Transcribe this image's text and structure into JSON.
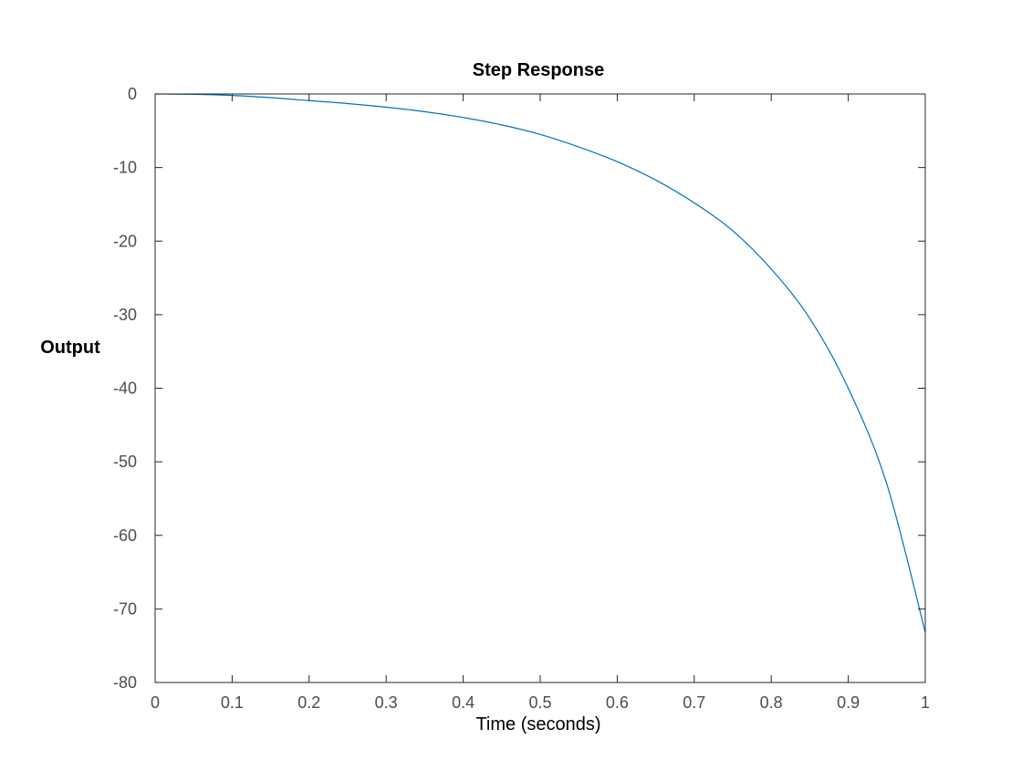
{
  "chart_data": {
    "type": "line",
    "title": "Step Response",
    "xlabel": "Time (seconds)",
    "ylabel": "Output",
    "xlim": [
      0,
      1
    ],
    "ylim": [
      -80,
      0
    ],
    "grid": false,
    "xticks": [
      "0",
      "0.1",
      "0.2",
      "0.3",
      "0.4",
      "0.5",
      "0.6",
      "0.7",
      "0.8",
      "0.9",
      "1"
    ],
    "yticks": [
      "0",
      "-10",
      "-20",
      "-30",
      "-40",
      "-50",
      "-60",
      "-70",
      "-80"
    ],
    "x": [
      0,
      0.05,
      0.1,
      0.15,
      0.2,
      0.25,
      0.3,
      0.35,
      0.4,
      0.45,
      0.5,
      0.55,
      0.6,
      0.65,
      0.7,
      0.75,
      0.8,
      0.85,
      0.9,
      0.95,
      1.0
    ],
    "series": [
      {
        "color": "#0072bd",
        "values": [
          0,
          -0.05,
          -0.2,
          -0.5,
          -0.9,
          -1.3,
          -1.8,
          -2.4,
          -3.2,
          -4.2,
          -5.5,
          -7.2,
          -9.2,
          -11.7,
          -14.8,
          -18.6,
          -23.8,
          -30.5,
          -40.0,
          -53.0,
          -73.2
        ]
      }
    ]
  }
}
